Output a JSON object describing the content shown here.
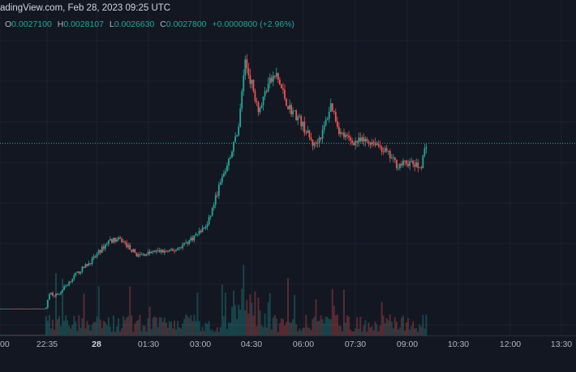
{
  "header": {
    "source_line": "adingView.com, Feb 28, 2023 09:25 UTC"
  },
  "ohlc": {
    "open_label": "O",
    "open_value": "0.0027100",
    "high_label": "H",
    "high_value": "0.0028107",
    "low_label": "L",
    "low_value": "0.0026630",
    "close_label": "C",
    "close_value": "0.0027800",
    "change": "+0.0000800 (+2.96%)"
  },
  "colors": {
    "background": "#131722",
    "up": "#26a69a",
    "down": "#ef5350",
    "grid": "#1e2230",
    "price_line": "#26a69a",
    "axis_text": "#b2b5be"
  },
  "chart_data": {
    "type": "candlestick",
    "title": "",
    "xlabel": "",
    "ylabel": "",
    "grid": true,
    "x_tick_labels": [
      "00",
      "22:35",
      "28",
      "01:30",
      "03:00",
      "04:30",
      "06:00",
      "07:30",
      "09:00",
      "10:30",
      "12:00",
      "13:30"
    ],
    "x_tick_bold": [
      false,
      false,
      true,
      false,
      false,
      false,
      false,
      false,
      false,
      false,
      false,
      false
    ],
    "last_close": 0.00278,
    "y_range": [
      0.0009,
      0.0039
    ],
    "price_path": [
      {
        "t": 0.0,
        "p": 0.0009
      },
      {
        "t": 0.08,
        "p": 0.0009
      },
      {
        "t": 0.085,
        "p": 0.00108
      },
      {
        "t": 0.1,
        "p": 0.00105
      },
      {
        "t": 0.13,
        "p": 0.00128
      },
      {
        "t": 0.16,
        "p": 0.00145
      },
      {
        "t": 0.19,
        "p": 0.00168
      },
      {
        "t": 0.21,
        "p": 0.00168
      },
      {
        "t": 0.24,
        "p": 0.0015
      },
      {
        "t": 0.27,
        "p": 0.00155
      },
      {
        "t": 0.3,
        "p": 0.00155
      },
      {
        "t": 0.33,
        "p": 0.00168
      },
      {
        "t": 0.36,
        "p": 0.00185
      },
      {
        "t": 0.38,
        "p": 0.00228
      },
      {
        "t": 0.4,
        "p": 0.00262
      },
      {
        "t": 0.415,
        "p": 0.003
      },
      {
        "t": 0.425,
        "p": 0.00372
      },
      {
        "t": 0.435,
        "p": 0.0035
      },
      {
        "t": 0.45,
        "p": 0.00315
      },
      {
        "t": 0.465,
        "p": 0.00345
      },
      {
        "t": 0.48,
        "p": 0.00355
      },
      {
        "t": 0.5,
        "p": 0.0032
      },
      {
        "t": 0.52,
        "p": 0.00305
      },
      {
        "t": 0.545,
        "p": 0.00275
      },
      {
        "t": 0.56,
        "p": 0.0029
      },
      {
        "t": 0.575,
        "p": 0.00323
      },
      {
        "t": 0.59,
        "p": 0.0029
      },
      {
        "t": 0.61,
        "p": 0.0028
      },
      {
        "t": 0.63,
        "p": 0.0028
      },
      {
        "t": 0.65,
        "p": 0.0028
      },
      {
        "t": 0.67,
        "p": 0.00268
      },
      {
        "t": 0.69,
        "p": 0.00253
      },
      {
        "t": 0.71,
        "p": 0.00256
      },
      {
        "t": 0.73,
        "p": 0.0025
      },
      {
        "t": 0.74,
        "p": 0.00278
      }
    ]
  }
}
